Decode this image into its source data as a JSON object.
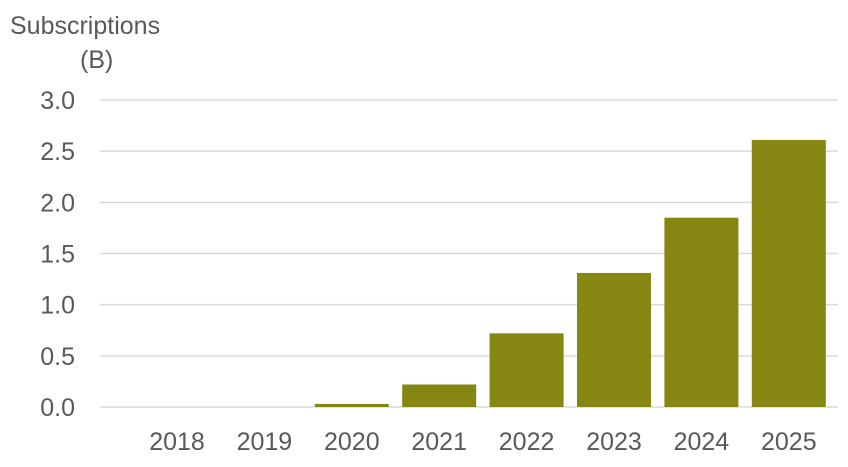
{
  "chart_data": {
    "type": "bar",
    "title": "",
    "xlabel": "",
    "ylabel": "Subscriptions",
    "ylabel_unit": "(B)",
    "categories": [
      "2018",
      "2019",
      "2020",
      "2021",
      "2022",
      "2023",
      "2024",
      "2025"
    ],
    "values": [
      0.0,
      0.0,
      0.03,
      0.22,
      0.72,
      1.31,
      1.85,
      2.61
    ],
    "ylim": [
      0,
      3.0
    ],
    "yticks": [
      "0.0",
      "0.5",
      "1.0",
      "1.5",
      "2.0",
      "2.5",
      "3.0"
    ],
    "grid": true,
    "legend": "none",
    "bar_color": "#868712"
  }
}
